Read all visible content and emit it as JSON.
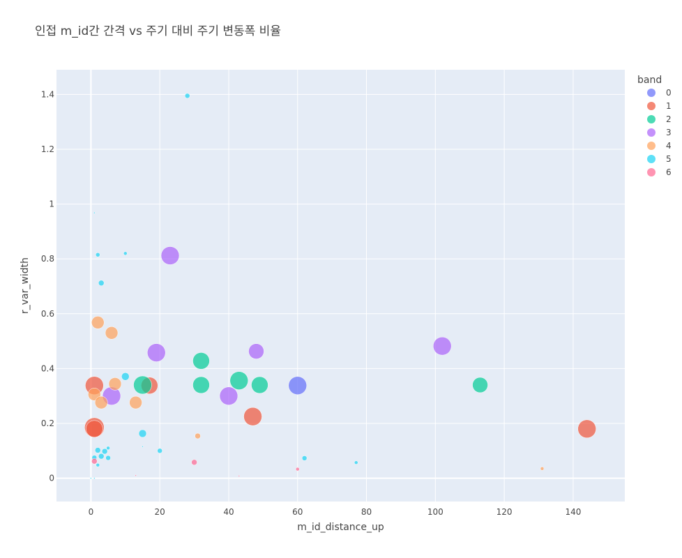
{
  "chart_data": {
    "type": "scatter",
    "title": "인접 m_id간 간격  vs 주기 대비 주기 변동폭 비율",
    "xlabel": "m_id_distance_up",
    "ylabel": "r_var_width",
    "xlim": [
      -10,
      155
    ],
    "ylim": [
      -0.085,
      1.49
    ],
    "x_ticks": [
      0,
      20,
      40,
      60,
      80,
      100,
      120,
      140
    ],
    "y_ticks": [
      0,
      0.2,
      0.4,
      0.6,
      0.8,
      1,
      1.2,
      1.4
    ],
    "x_tick_labels": [
      "0",
      "20",
      "40",
      "60",
      "80",
      "100",
      "120",
      "140"
    ],
    "y_tick_labels": [
      "0",
      "0.2",
      "0.4",
      "0.6",
      "0.8",
      "1",
      "1.2",
      "1.4"
    ],
    "grid": true,
    "legend_title": "band",
    "legend_position": "right",
    "series": [
      {
        "name": "0",
        "color": "#636efa",
        "points": [
          [
            60,
            0.338,
            13
          ]
        ]
      },
      {
        "name": "1",
        "color": "#ef553b",
        "points": [
          [
            1,
            0.338,
            13
          ],
          [
            1,
            0.185,
            14
          ],
          [
            1,
            0.18,
            12
          ],
          [
            17,
            0.338,
            12
          ],
          [
            47,
            0.225,
            13
          ],
          [
            144,
            0.18,
            13
          ]
        ]
      },
      {
        "name": "2",
        "color": "#00cc96",
        "points": [
          [
            15,
            0.34,
            13
          ],
          [
            32,
            0.428,
            12
          ],
          [
            32,
            0.34,
            12
          ],
          [
            43,
            0.356,
            13
          ],
          [
            49,
            0.34,
            12
          ],
          [
            113,
            0.34,
            11
          ]
        ]
      },
      {
        "name": "3",
        "color": "#ab63fa",
        "points": [
          [
            23,
            0.812,
            13
          ],
          [
            19,
            0.458,
            13
          ],
          [
            6,
            0.3,
            13
          ],
          [
            40,
            0.3,
            13
          ],
          [
            48,
            0.463,
            11
          ],
          [
            102,
            0.482,
            13
          ]
        ]
      },
      {
        "name": "4",
        "color": "#ffa15a",
        "points": [
          [
            2,
            0.568,
            9
          ],
          [
            6,
            0.53,
            9
          ],
          [
            7,
            0.344,
            9
          ],
          [
            1,
            0.306,
            9
          ],
          [
            3,
            0.276,
            9
          ],
          [
            13,
            0.276,
            9
          ],
          [
            31,
            0.154,
            4
          ],
          [
            131,
            0.035,
            2.5
          ]
        ]
      },
      {
        "name": "5",
        "color": "#19d3f3",
        "points": [
          [
            28,
            1.395,
            3.5
          ],
          [
            1,
            0.968,
            1
          ],
          [
            2,
            0.815,
            3
          ],
          [
            10,
            0.82,
            2.5
          ],
          [
            3,
            0.712,
            4
          ],
          [
            10,
            0.371,
            5.5
          ],
          [
            15,
            0.163,
            5.5
          ],
          [
            20,
            0.1,
            3.5
          ],
          [
            15,
            0.115,
            1
          ],
          [
            2,
            0.102,
            4
          ],
          [
            4,
            0.098,
            4
          ],
          [
            5,
            0.11,
            2.5
          ],
          [
            3,
            0.08,
            4
          ],
          [
            5,
            0.074,
            3.5
          ],
          [
            1,
            0.075,
            3.5
          ],
          [
            2,
            0.048,
            2.5
          ],
          [
            62,
            0.073,
            3.5
          ],
          [
            77,
            0.057,
            2.5
          ],
          [
            0,
            0.0,
            1
          ],
          [
            1,
            0.0,
            1
          ]
        ]
      },
      {
        "name": "6",
        "color": "#ff6692",
        "points": [
          [
            1,
            0.062,
            4
          ],
          [
            30,
            0.058,
            4
          ],
          [
            60,
            0.033,
            2.5
          ],
          [
            13,
            0.01,
            1
          ],
          [
            43,
            0.008,
            1
          ]
        ]
      }
    ]
  }
}
